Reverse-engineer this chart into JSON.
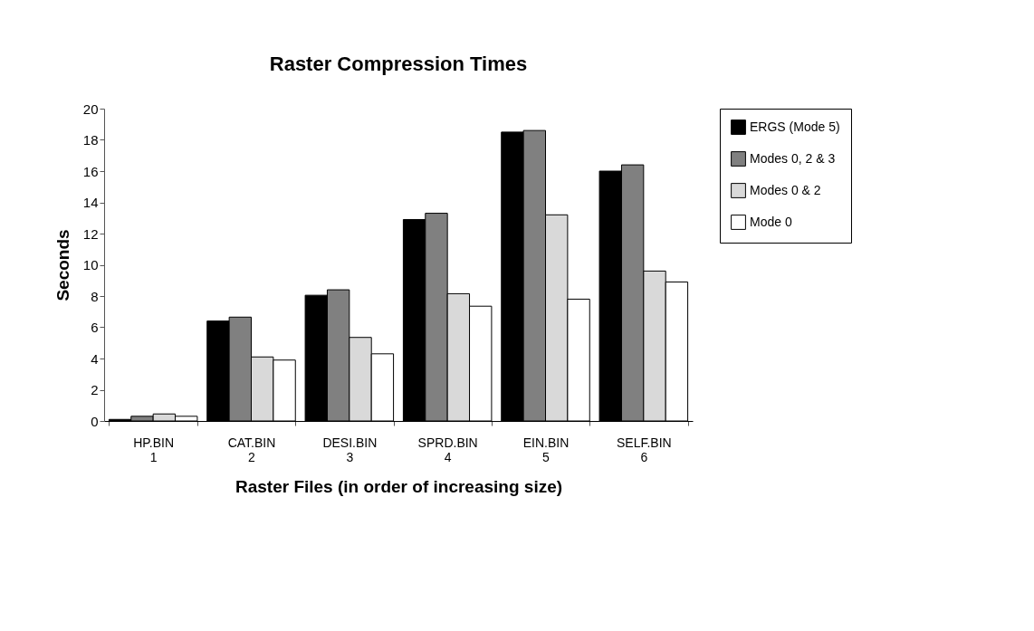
{
  "chart_data": {
    "type": "bar",
    "title": "Raster Compression Times",
    "xlabel": "Raster Files (in order of increasing size)",
    "ylabel": "Seconds",
    "categories": [
      "HP.BIN\n1",
      "CAT.BIN\n2",
      "DESI.BIN\n3",
      "SPRD.BIN\n4",
      "EIN.BIN\n5",
      "SELF.BIN\n6"
    ],
    "series": [
      {
        "name": "ERGS (Mode 5)",
        "color": "#000000",
        "values": [
          0.1,
          6.4,
          8.05,
          12.9,
          18.5,
          16.0
        ]
      },
      {
        "name": "Modes 0, 2 & 3",
        "color": "#808080",
        "values": [
          0.3,
          6.65,
          8.4,
          13.3,
          18.6,
          16.4
        ]
      },
      {
        "name": "Modes 0 & 2",
        "color": "#d9d9d9",
        "values": [
          0.45,
          4.1,
          5.35,
          8.15,
          13.2,
          9.6
        ]
      },
      {
        "name": "Mode 0",
        "color": "#ffffff",
        "values": [
          0.3,
          3.9,
          4.3,
          7.35,
          7.8,
          8.9
        ]
      }
    ],
    "ylim": [
      0,
      20
    ],
    "yticks": [
      0,
      2,
      4,
      6,
      8,
      10,
      12,
      14,
      16,
      18,
      20
    ],
    "grid": false,
    "legend": "right"
  }
}
